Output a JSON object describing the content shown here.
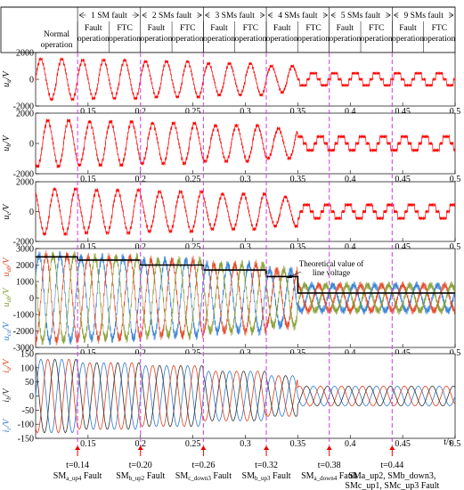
{
  "chart_data": {
    "type": "line",
    "x_ticks": [
      "0.15",
      "0.2",
      "0.25",
      "0.3",
      "0.35",
      "0.4",
      "0.45",
      "0.5"
    ],
    "x_unit": "t/s",
    "xlim": [
      0.1,
      0.5
    ],
    "stage_groups": [
      {
        "label": "1 SM fault",
        "start": 0.14,
        "end": 0.2
      },
      {
        "label": "2 SMs fault",
        "start": 0.2,
        "end": 0.26
      },
      {
        "label": "3 SMs fault",
        "start": 0.26,
        "end": 0.32
      },
      {
        "label": "4 SMs fault",
        "start": 0.32,
        "end": 0.38
      },
      {
        "label": "5 SMs fault",
        "start": 0.38,
        "end": 0.44
      },
      {
        "label": "9 SMs fault",
        "start": 0.44,
        "end": 0.5
      }
    ],
    "phases": [
      {
        "label": "Normal operation",
        "start": 0.1,
        "end": 0.14
      },
      {
        "label": "Fault operation",
        "start": 0.14,
        "end": 0.17
      },
      {
        "label": "FTC operation",
        "start": 0.17,
        "end": 0.2
      },
      {
        "label": "Fault operation",
        "start": 0.2,
        "end": 0.23
      },
      {
        "label": "FTC operation",
        "start": 0.23,
        "end": 0.26
      },
      {
        "label": "Fault operation",
        "start": 0.26,
        "end": 0.29
      },
      {
        "label": "FTC operation",
        "start": 0.29,
        "end": 0.32
      },
      {
        "label": "Fault operation",
        "start": 0.32,
        "end": 0.35
      },
      {
        "label": "FTC operation",
        "start": 0.35,
        "end": 0.38
      },
      {
        "label": "Fault operation",
        "start": 0.38,
        "end": 0.41
      },
      {
        "label": "FTC operation",
        "start": 0.41,
        "end": 0.44
      },
      {
        "label": "Fault operation",
        "start": 0.44,
        "end": 0.47
      },
      {
        "label": "FTC operation",
        "start": 0.47,
        "end": 0.5
      }
    ],
    "fault_times": [
      0.14,
      0.2,
      0.26,
      0.32,
      0.38,
      0.44
    ],
    "panels": [
      {
        "id": "ua",
        "ylabel": "ua/V",
        "ylim": [
          -2000,
          2000
        ],
        "yticks": [
          "2000",
          "0",
          "-2000"
        ],
        "series": [
          {
            "color": "#ff0000"
          }
        ]
      },
      {
        "id": "ub",
        "ylabel": "ub/V",
        "ylim": [
          -2000,
          2000
        ],
        "yticks": [
          "2000",
          "0",
          "-2000"
        ],
        "series": [
          {
            "color": "#ff0000"
          }
        ]
      },
      {
        "id": "uc",
        "ylabel": "uc/V",
        "ylim": [
          -2000,
          2000
        ],
        "yticks": [
          "2000",
          "0",
          "-2000"
        ],
        "series": [
          {
            "color": "#ff0000"
          }
        ]
      },
      {
        "id": "line",
        "ylabel_top": "uab/V",
        "ylabel_mid": "uab/V",
        "ylabel_bot": "uca/V",
        "ylim": [
          -3000,
          3000
        ],
        "yticks": [
          "3000",
          "2000",
          "1000",
          "0",
          "-1000",
          "-2000",
          "-3000"
        ],
        "series": [
          {
            "color": "#2e7bd1"
          },
          {
            "color": "#e0401c"
          },
          {
            "color": "#7f9a2c"
          }
        ],
        "theoretical_line": [
          {
            "x0": 0.1,
            "x1": 0.14,
            "y": 2500
          },
          {
            "x0": 0.14,
            "x1": 0.2,
            "y": 2300
          },
          {
            "x0": 0.2,
            "x1": 0.26,
            "y": 2000
          },
          {
            "x0": 0.26,
            "x1": 0.32,
            "y": 1700
          },
          {
            "x0": 0.32,
            "x1": 0.35,
            "y": 1300
          },
          {
            "x0": 0.35,
            "x1": 0.5,
            "y": 300
          }
        ],
        "annotation": "Theoretical value of line voltage"
      },
      {
        "id": "current",
        "ylabel_a": "ia/V",
        "ylabel_b": "ib/V",
        "ylabel_c": "ic/V",
        "ylim": [
          -150,
          150
        ],
        "yticks": [
          "150",
          "100",
          "50",
          "0",
          "-50",
          "-100",
          "-150"
        ],
        "series": [
          {
            "color": "#2e7bd1"
          },
          {
            "color": "#e0401c"
          },
          {
            "color": "#333333"
          }
        ]
      }
    ],
    "fault_events": [
      {
        "t": "t=0.14",
        "label": "SMa_up4 Fault"
      },
      {
        "t": "t=0.20",
        "label": "SMb_up2 Fault"
      },
      {
        "t": "t=0.26",
        "label": "SMc_down3 Fault"
      },
      {
        "t": "t=0.32",
        "label": "SMb_up3 Fault"
      },
      {
        "t": "t=0.38",
        "label": "SMa_down4 Fault"
      },
      {
        "t": "t=0.44",
        "label": "SMa_up2, SMb_down3, SMc_up1, SMc_up3 Fault"
      }
    ],
    "fault_event_display": [
      [
        "SM",
        "a_up4",
        " Fault"
      ],
      [
        "SM",
        "b_up2",
        " Fault"
      ],
      [
        "SM",
        "c_down3",
        " Fault"
      ],
      [
        "SM",
        "b_up3",
        " Fault"
      ],
      [
        "SM",
        "a_down4",
        " Fault"
      ]
    ],
    "last_event_lines": [
      "SMa_up2, SMb_down3,",
      "SMc_up1, SMc_up3 Fault"
    ]
  }
}
